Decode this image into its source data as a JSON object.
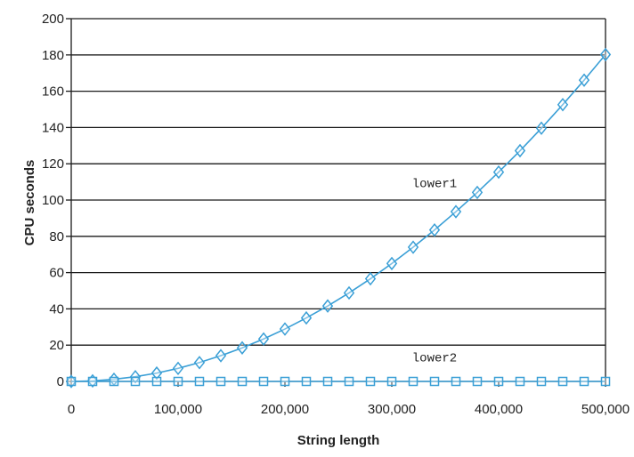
{
  "chart_data": {
    "type": "line",
    "title": "",
    "xlabel": "String length",
    "ylabel": "CPU seconds",
    "xlim": [
      0,
      500000
    ],
    "ylim": [
      0,
      200
    ],
    "x_ticks": [
      {
        "value": 0,
        "label": "0"
      },
      {
        "value": 100000,
        "label": "100,000"
      },
      {
        "value": 200000,
        "label": "200,000"
      },
      {
        "value": 300000,
        "label": "300,000"
      },
      {
        "value": 400000,
        "label": "400,000"
      },
      {
        "value": 500000,
        "label": "500,000"
      }
    ],
    "y_ticks": [
      {
        "value": 0,
        "label": "0"
      },
      {
        "value": 20,
        "label": "20"
      },
      {
        "value": 40,
        "label": "40"
      },
      {
        "value": 60,
        "label": "60"
      },
      {
        "value": 80,
        "label": "80"
      },
      {
        "value": 100,
        "label": "100"
      },
      {
        "value": 120,
        "label": "120"
      },
      {
        "value": 140,
        "label": "140"
      },
      {
        "value": 160,
        "label": "160"
      },
      {
        "value": 180,
        "label": "180"
      },
      {
        "value": 200,
        "label": "200"
      }
    ],
    "grid": "horizontal",
    "legend": "none",
    "x": [
      0,
      20000,
      40000,
      60000,
      80000,
      100000,
      120000,
      140000,
      160000,
      180000,
      200000,
      220000,
      240000,
      260000,
      280000,
      300000,
      320000,
      340000,
      360000,
      380000,
      400000,
      420000,
      440000,
      460000,
      480000,
      500000
    ],
    "series": [
      {
        "name": "lower1",
        "marker": "diamond",
        "color": "#3a9fd6",
        "values": [
          0,
          0.3,
          1.2,
          2.6,
          4.6,
          7.2,
          10.4,
          14.2,
          18.5,
          23.4,
          28.9,
          35.0,
          41.6,
          48.8,
          56.6,
          65.0,
          74.0,
          83.5,
          93.6,
          104.2,
          115.4,
          127.2,
          139.6,
          152.6,
          166.1,
          180.2
        ]
      },
      {
        "name": "lower2",
        "marker": "square",
        "color": "#3a9fd6",
        "values": [
          0,
          0,
          0,
          0,
          0,
          0,
          0,
          0,
          0,
          0,
          0,
          0,
          0,
          0,
          0,
          0,
          0,
          0,
          0,
          0,
          0,
          0,
          0,
          0,
          0,
          0
        ]
      }
    ],
    "annotations": [
      {
        "text": "lower1",
        "series": "lower1",
        "at_x": 340000,
        "at_y": 107
      },
      {
        "text": "lower2",
        "series": "lower2",
        "at_x": 340000,
        "at_y": 11
      }
    ]
  }
}
